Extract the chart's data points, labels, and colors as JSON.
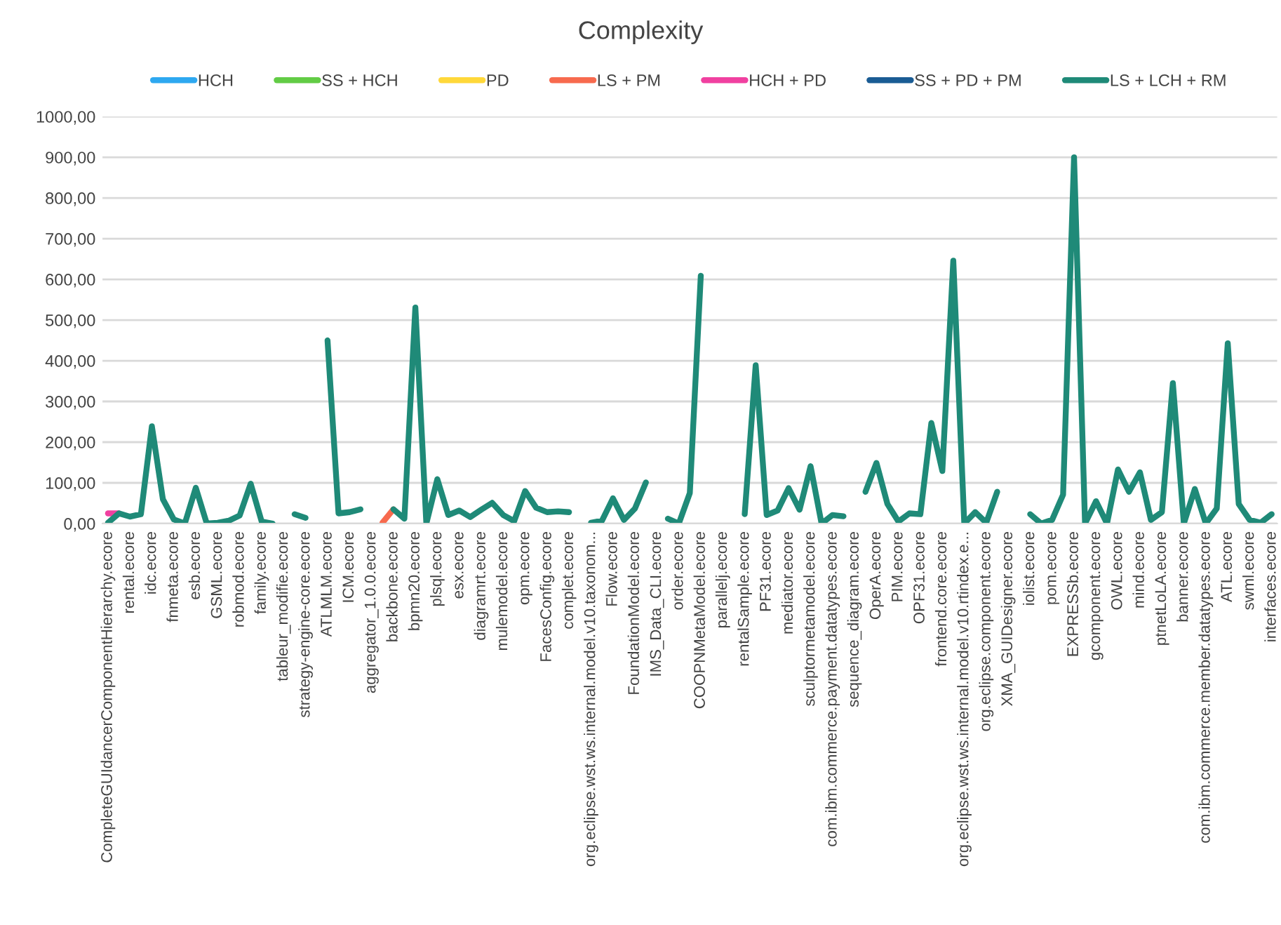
{
  "chart_data": {
    "type": "line",
    "title": "Complexity",
    "categories": [
      "CompleteGUIdancerComponentHierarchy.ecore",
      null,
      "rental.ecore",
      null,
      "idc.ecore",
      null,
      "fnmeta.ecore",
      null,
      "esb.ecore",
      null,
      "GSML.ecore",
      null,
      "robmod.ecore",
      null,
      "family.ecore",
      null,
      "tableur_modifie.ecore",
      null,
      "strategy-engine-core.ecore",
      null,
      "ATLMLM.ecore",
      null,
      "ICM.ecore",
      null,
      "aggregator_1.0.0.ecore",
      null,
      "backbone.ecore",
      null,
      "bpmn20.ecore",
      null,
      "plsql.ecore",
      null,
      "esx.ecore",
      null,
      "diagramrt.ecore",
      null,
      "mulemodel.ecore",
      null,
      "opm.ecore",
      null,
      "FacesConfig.ecore",
      null,
      "complet.ecore",
      null,
      "org.eclipse.wst.ws.internal.model.v10.taxonom...",
      null,
      "Flow.ecore",
      null,
      "FoundationModel.ecore",
      null,
      "IMS_Data_CLI.ecore",
      null,
      "order.ecore",
      null,
      "COOPNMetaModel.ecore",
      null,
      "parallelj.ecore",
      null,
      "rentalSample.ecore",
      null,
      "PF31.ecore",
      null,
      "mediator.ecore",
      null,
      "sculptormetamodel.ecore",
      null,
      "com.ibm.commerce.payment.datatypes.ecore",
      null,
      "sequence_diagram.ecore",
      null,
      "OperA.ecore",
      null,
      "PIM.ecore",
      null,
      "OPF31.ecore",
      null,
      "frontend.core.ecore",
      null,
      "org.eclipse.wst.ws.internal.model.v10.rtindex.e...",
      null,
      "org.eclipse.component.ecore",
      null,
      "XMA_GUIDesigner.ecore",
      null,
      "iolist.ecore",
      null,
      "pom.ecore",
      null,
      "EXPRESSb.ecore",
      null,
      "gcomponent.ecore",
      null,
      "OWL.ecore",
      null,
      "mind.ecore",
      null,
      "ptnetLoLA.ecore",
      null,
      "banner.ecore",
      null,
      "com.ibm.commerce.member.datatypes.ecore",
      null,
      "ATL.ecore",
      null,
      "swml.ecore",
      null,
      "interfaces.ecore"
    ],
    "series": [
      {
        "name": "HCH",
        "color": "#2ea8f0",
        "values": [
          null,
          null,
          null,
          null,
          null,
          null,
          null,
          null,
          null,
          null,
          null,
          null,
          null,
          null,
          null,
          null,
          null,
          null,
          null,
          null,
          null,
          null,
          null,
          null,
          null,
          null,
          null,
          null,
          null,
          null,
          null,
          null,
          null,
          null,
          null,
          null,
          null,
          null,
          null,
          null,
          null,
          null,
          null,
          null,
          null,
          null,
          null,
          null,
          null,
          null,
          null,
          null,
          null,
          null,
          null,
          null,
          null,
          null,
          null,
          null,
          null,
          null,
          null,
          null,
          null,
          null,
          null,
          null,
          null,
          null,
          null,
          null,
          null,
          null,
          null,
          null,
          null,
          null,
          null,
          null,
          null,
          null,
          null,
          null,
          null,
          null,
          null,
          null,
          null,
          null,
          null,
          null,
          null,
          null,
          null,
          null,
          null,
          null,
          null,
          null,
          null,
          null,
          null,
          null,
          null,
          null,
          null
        ]
      },
      {
        "name": "SS + HCH",
        "color": "#62cc45",
        "values": [
          null,
          null,
          null,
          null,
          null,
          null,
          null,
          null,
          null,
          null,
          null,
          null,
          null,
          null,
          null,
          null,
          null,
          null,
          null,
          null,
          null,
          null,
          null,
          null,
          null,
          null,
          null,
          null,
          null,
          null,
          null,
          null,
          null,
          null,
          null,
          null,
          null,
          null,
          null,
          null,
          null,
          null,
          null,
          null,
          null,
          null,
          null,
          null,
          null,
          null,
          null,
          null,
          null,
          null,
          null,
          null,
          null,
          null,
          null,
          null,
          null,
          null,
          null,
          null,
          null,
          null,
          null,
          null,
          null,
          null,
          null,
          null,
          null,
          null,
          null,
          null,
          null,
          null,
          null,
          null,
          null,
          null,
          null,
          null,
          null,
          null,
          null,
          null,
          null,
          null,
          null,
          null,
          null,
          null,
          null,
          null,
          null,
          null,
          null,
          null,
          null,
          null,
          null,
          null,
          null,
          null,
          null
        ]
      },
      {
        "name": "PD",
        "color": "#ffd83a",
        "values": [
          null,
          null,
          null,
          null,
          null,
          null,
          null,
          null,
          null,
          null,
          null,
          null,
          null,
          null,
          null,
          null,
          null,
          null,
          null,
          null,
          null,
          null,
          null,
          null,
          null,
          null,
          null,
          null,
          null,
          null,
          null,
          null,
          null,
          null,
          null,
          null,
          null,
          null,
          null,
          null,
          null,
          null,
          null,
          null,
          null,
          null,
          null,
          null,
          null,
          null,
          null,
          null,
          null,
          null,
          null,
          null,
          null,
          null,
          null,
          null,
          null,
          null,
          null,
          null,
          null,
          null,
          null,
          null,
          null,
          null,
          null,
          null,
          null,
          null,
          null,
          null,
          null,
          null,
          null,
          null,
          null,
          null,
          null,
          null,
          null,
          null,
          null,
          null,
          null,
          null,
          null,
          null,
          null,
          null,
          null,
          null,
          null,
          null,
          null,
          null,
          null,
          null,
          null,
          null,
          null,
          null,
          null
        ]
      },
      {
        "name": "LS + PM",
        "color": "#f76a4e",
        "values": [
          null,
          null,
          null,
          null,
          null,
          null,
          null,
          null,
          null,
          null,
          null,
          null,
          null,
          null,
          null,
          null,
          null,
          null,
          null,
          null,
          null,
          null,
          null,
          null,
          null,
          2,
          35,
          null,
          null,
          null,
          null,
          null,
          null,
          null,
          null,
          null,
          null,
          null,
          null,
          null,
          null,
          null,
          null,
          null,
          null,
          null,
          null,
          null,
          null,
          null,
          null,
          null,
          null,
          null,
          null,
          null,
          null,
          null,
          null,
          null,
          null,
          null,
          null,
          null,
          null,
          null,
          null,
          null,
          null,
          null,
          null,
          null,
          null,
          null,
          null,
          null,
          null,
          null,
          null,
          null,
          null,
          null,
          null,
          null,
          null,
          null,
          null,
          null,
          null,
          null,
          null,
          null,
          null,
          null,
          null,
          null,
          null,
          null,
          null,
          null,
          null,
          null,
          null,
          null,
          null,
          null,
          null
        ]
      },
      {
        "name": "HCH + PD",
        "color": "#f040a0",
        "values": [
          25,
          25,
          null,
          null,
          null,
          null,
          null,
          null,
          null,
          null,
          null,
          null,
          null,
          null,
          null,
          null,
          null,
          null,
          null,
          null,
          null,
          null,
          null,
          null,
          null,
          null,
          null,
          null,
          null,
          null,
          null,
          null,
          null,
          null,
          null,
          null,
          null,
          null,
          null,
          null,
          null,
          null,
          null,
          null,
          null,
          null,
          null,
          null,
          null,
          null,
          null,
          null,
          null,
          null,
          null,
          null,
          null,
          null,
          null,
          null,
          null,
          null,
          null,
          null,
          null,
          null,
          null,
          null,
          null,
          null,
          null,
          null,
          null,
          null,
          null,
          null,
          null,
          null,
          null,
          null,
          null,
          null,
          null,
          null,
          null,
          null,
          null,
          null,
          null,
          null,
          null,
          null,
          null,
          null,
          null,
          null,
          null,
          null,
          null,
          null,
          null,
          null,
          null,
          null,
          null,
          null,
          null
        ]
      },
      {
        "name": "SS + PD + PM",
        "color": "#1a5c94",
        "values": [
          null,
          null,
          null,
          null,
          null,
          null,
          null,
          null,
          null,
          null,
          null,
          null,
          null,
          null,
          null,
          null,
          null,
          null,
          null,
          null,
          null,
          null,
          null,
          null,
          null,
          null,
          null,
          null,
          null,
          null,
          null,
          null,
          null,
          null,
          null,
          null,
          null,
          null,
          null,
          null,
          null,
          null,
          null,
          null,
          null,
          null,
          null,
          null,
          null,
          null,
          null,
          null,
          null,
          null,
          null,
          null,
          null,
          null,
          null,
          null,
          null,
          null,
          null,
          null,
          null,
          null,
          null,
          null,
          null,
          null,
          null,
          null,
          null,
          null,
          null,
          null,
          null,
          null,
          null,
          null,
          null,
          null,
          null,
          null,
          null,
          null,
          null,
          null,
          null,
          null,
          null,
          null,
          null,
          null,
          null,
          null,
          null,
          null,
          null,
          null,
          null,
          null,
          null,
          null,
          null,
          null,
          null
        ]
      },
      {
        "name": "LS + LCH + RM",
        "color": "#1f8a78",
        "values": [
          2,
          25,
          17,
          23,
          239,
          60,
          10,
          0,
          88,
          0,
          2,
          7,
          20,
          98,
          5,
          0,
          null,
          23,
          14,
          null,
          450,
          25,
          28,
          35,
          null,
          null,
          35,
          12,
          531,
          0,
          109,
          21,
          32,
          16,
          34,
          51,
          21,
          6,
          80,
          39,
          28,
          30,
          28,
          null,
          2,
          7,
          62,
          9,
          37,
          101,
          null,
          12,
          0,
          75,
          609,
          null,
          null,
          null,
          23,
          389,
          21,
          32,
          87,
          34,
          141,
          0,
          21,
          18,
          null,
          78,
          149,
          48,
          5,
          25,
          23,
          247,
          129,
          646,
          0,
          28,
          2,
          78,
          null,
          null,
          23,
          0,
          9,
          71,
          900,
          0,
          55,
          0,
          133,
          78,
          126,
          9,
          28,
          345,
          0,
          85,
          0,
          37,
          443,
          48,
          9,
          2,
          23
        ]
      }
    ],
    "ylim": [
      0,
      1000
    ],
    "yticks": [
      {
        "value": 0,
        "label": "0,00"
      },
      {
        "value": 100,
        "label": "100,00"
      },
      {
        "value": 200,
        "label": "200,00"
      },
      {
        "value": 300,
        "label": "300,00"
      },
      {
        "value": 400,
        "label": "400,00"
      },
      {
        "value": 500,
        "label": "500,00"
      },
      {
        "value": 600,
        "label": "600,00"
      },
      {
        "value": 700,
        "label": "700,00"
      },
      {
        "value": 800,
        "label": "800,00"
      },
      {
        "value": 900,
        "label": "900,00"
      },
      {
        "value": 1000,
        "label": "1000,00"
      }
    ],
    "grid": "y",
    "legend": "top",
    "marker": "none",
    "line_style": "solid"
  }
}
